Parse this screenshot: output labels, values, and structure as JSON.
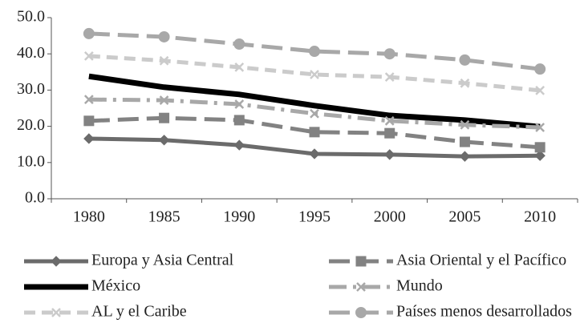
{
  "chart_data": {
    "type": "line",
    "categories": [
      "1980",
      "1985",
      "1990",
      "1995",
      "2000",
      "2005",
      "2010"
    ],
    "ylim": [
      0,
      50
    ],
    "yticks": [
      {
        "value": 0,
        "label": "0.0"
      },
      {
        "value": 10,
        "label": "10.0"
      },
      {
        "value": 20,
        "label": "20.0"
      },
      {
        "value": 30,
        "label": "30.0"
      },
      {
        "value": 40,
        "label": "40.0"
      },
      {
        "value": 50,
        "label": "50.0"
      }
    ],
    "legend": "bottom",
    "series": [
      {
        "name": "Europa y Asia Central",
        "color": "#6b6b6b",
        "marker": "diamond",
        "dash": "solid",
        "values": [
          16.6,
          16.2,
          14.8,
          12.4,
          12.2,
          11.7,
          11.9
        ]
      },
      {
        "name": "Asia Oriental y el Pacífico",
        "color": "#828282",
        "marker": "square",
        "dash": "long",
        "values": [
          21.5,
          22.3,
          21.7,
          18.4,
          18.1,
          15.7,
          14.2
        ]
      },
      {
        "name": "México",
        "color": "#000000",
        "marker": "none",
        "dash": "solid",
        "width": 7,
        "values": [
          33.8,
          30.8,
          28.8,
          25.7,
          23.0,
          21.7,
          19.9
        ]
      },
      {
        "name": "Mundo",
        "color": "#a8a8a8",
        "marker": "x",
        "dash": "dashdot",
        "values": [
          27.4,
          27.2,
          26.1,
          23.5,
          21.5,
          20.4,
          19.7
        ]
      },
      {
        "name": "AL y el Caribe",
        "color": "#cbcbcb",
        "marker": "x",
        "dash": "short",
        "values": [
          39.4,
          38.1,
          36.3,
          34.3,
          33.6,
          31.9,
          29.9
        ]
      },
      {
        "name": "Países menos desarrollados",
        "color": "#a8a8a8",
        "marker": "circle",
        "dash": "long",
        "values": [
          45.6,
          44.7,
          42.7,
          40.7,
          40.0,
          38.3,
          35.8
        ]
      }
    ]
  }
}
